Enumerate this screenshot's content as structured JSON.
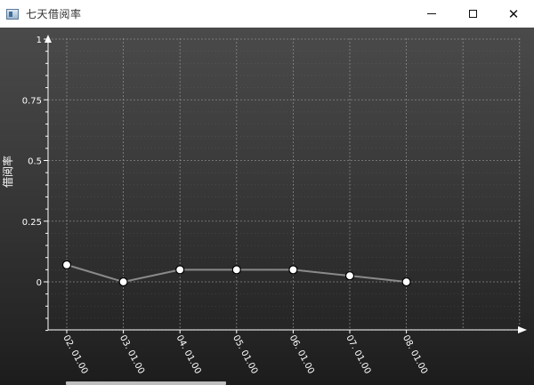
{
  "window": {
    "title": "七天借阅率",
    "controls": {
      "minimize": "minimize",
      "maximize": "maximize",
      "close": "close"
    },
    "app_icon": "window-app-icon"
  },
  "chart_data": {
    "type": "line",
    "title": "",
    "xlabel": "",
    "ylabel": "借阅率",
    "categories": [
      "02.01.00",
      "03.01.00",
      "04.01.00",
      "05.01.00",
      "06.01.00",
      "07.01.00",
      "08.01.00"
    ],
    "x_tick_labels": [
      "02. 01.00",
      "03. 01.00",
      "04. 01.00",
      "05. 01.00",
      "06. 01.00",
      "07. 01.00",
      "08. 01.00"
    ],
    "values": [
      0.07,
      0.0,
      0.05,
      0.05,
      0.05,
      0.025,
      0.0
    ],
    "ylim": [
      -0.2,
      1.0
    ],
    "y_ticks": [
      0,
      0.25,
      0.5,
      0.75,
      1
    ],
    "y_tick_labels": [
      "0",
      "0.25",
      "0.5",
      "0.75",
      "1"
    ],
    "grid": true,
    "legend": "none",
    "colors": {
      "line": "#8a8a8a",
      "marker_fill": "#ffffff",
      "marker_stroke": "#000000",
      "axis": "#ffffff",
      "grid": "#9a9a9a",
      "text": "#ffffff"
    }
  }
}
